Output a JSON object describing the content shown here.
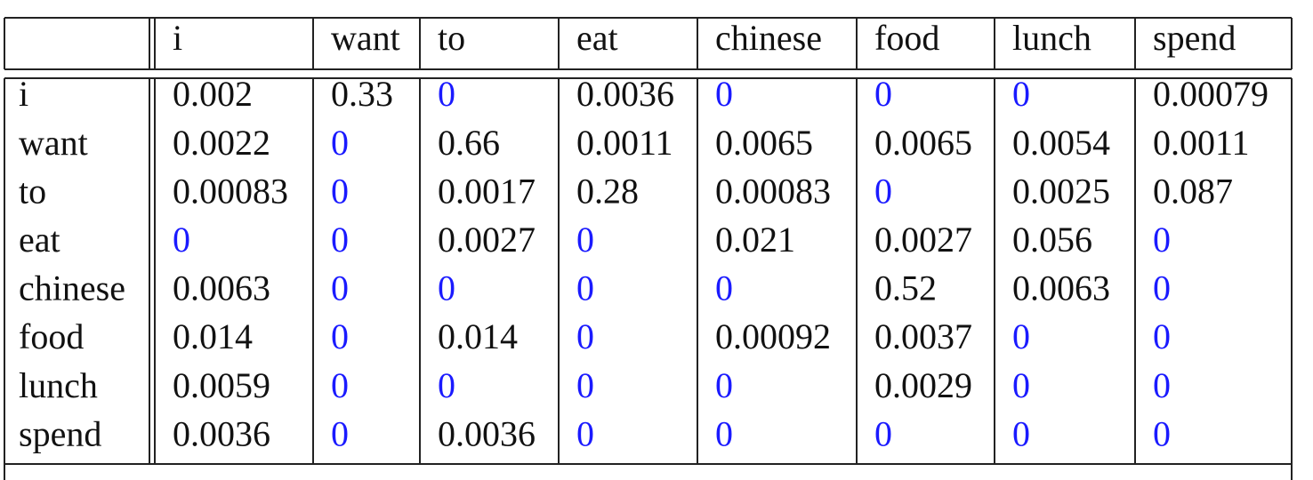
{
  "table": {
    "header": [
      "i",
      "want",
      "to",
      "eat",
      "chinese",
      "food",
      "lunch",
      "spend"
    ],
    "rows": [
      {
        "label": "i",
        "cells": [
          "0.002",
          "0.33",
          "0",
          "0.0036",
          "0",
          "0",
          "0",
          "0.00079"
        ]
      },
      {
        "label": "want",
        "cells": [
          "0.0022",
          "0",
          "0.66",
          "0.0011",
          "0.0065",
          "0.0065",
          "0.0054",
          "0.0011"
        ]
      },
      {
        "label": "to",
        "cells": [
          "0.00083",
          "0",
          "0.0017",
          "0.28",
          "0.00083",
          "0",
          "0.0025",
          "0.087"
        ]
      },
      {
        "label": "eat",
        "cells": [
          "0",
          "0",
          "0.0027",
          "0",
          "0.021",
          "0.0027",
          "0.056",
          "0"
        ]
      },
      {
        "label": "chinese",
        "cells": [
          "0.0063",
          "0",
          "0",
          "0",
          "0",
          "0.52",
          "0.0063",
          "0"
        ]
      },
      {
        "label": "food",
        "cells": [
          "0.014",
          "0",
          "0.014",
          "0",
          "0.00092",
          "0.0037",
          "0",
          "0"
        ]
      },
      {
        "label": "lunch",
        "cells": [
          "0.0059",
          "0",
          "0",
          "0",
          "0",
          "0.0029",
          "0",
          "0"
        ]
      },
      {
        "label": "spend",
        "cells": [
          "0.0036",
          "0",
          "0.0036",
          "0",
          "0",
          "0",
          "0",
          "0"
        ]
      }
    ]
  }
}
